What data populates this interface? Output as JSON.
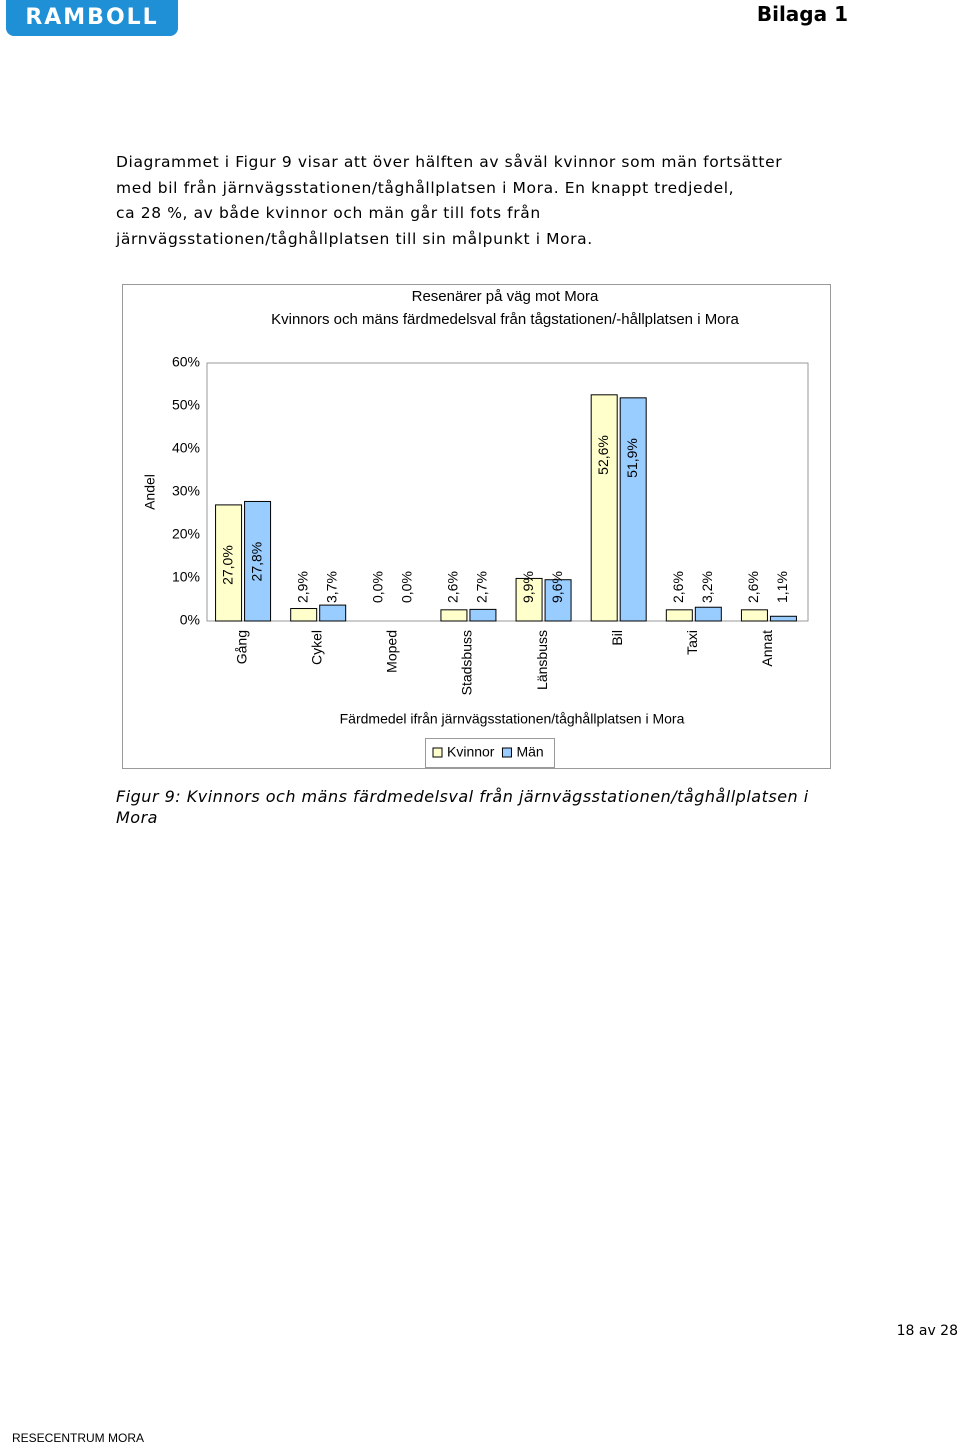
{
  "header": {
    "logo": "RAMBOLL",
    "appendix": "Bilaga 1"
  },
  "paragraph": {
    "lines": [
      "Diagrammet i Figur 9 visar att över hälften av såväl kvinnor som män fortsätter",
      "med bil från järnvägsstationen/tåghållplatsen i Mora. En knappt tredjedel,",
      "ca 28 %, av både kvinnor och män går till fots från",
      "järnvägsstationen/tåghållplatsen till sin målpunkt i Mora."
    ]
  },
  "chart_data": {
    "type": "bar",
    "title": "Resenärer på väg mot Mora",
    "subtitle": "Kvinnors och mäns färdmedelsval från tågstationen/-hållplatsen i Mora",
    "y_label": "Andel",
    "x_label": "Färdmedel ifrån järnvägsstationen/tåghållplatsen i Mora",
    "categories": [
      "Gång",
      "Cykel",
      "Moped",
      "Stadsbuss",
      "Länsbuss",
      "Bil",
      "Taxi",
      "Annat"
    ],
    "series": [
      {
        "name": "Kvinnor",
        "color": "#ffffcc",
        "values": [
          27.0,
          2.9,
          0.0,
          2.6,
          9.9,
          52.6,
          2.6,
          2.6
        ],
        "value_labels": [
          "27,0%",
          "2,9%",
          "0,0%",
          "2,6%",
          "9,9%",
          "52,6%",
          "2,6%",
          "2,6%"
        ]
      },
      {
        "name": "Män",
        "color": "#99ccff",
        "values": [
          27.8,
          3.7,
          0.0,
          2.7,
          9.6,
          51.9,
          3.2,
          1.1
        ],
        "value_labels": [
          "27,8%",
          "3,7%",
          "0,0%",
          "2,7%",
          "9,6%",
          "51,9%",
          "3,2%",
          "1,1%"
        ]
      }
    ],
    "ylim": [
      0,
      60
    ],
    "yticks": [
      {
        "value": 0,
        "label": "0%"
      },
      {
        "value": 10,
        "label": "10%"
      },
      {
        "value": 20,
        "label": "20%"
      },
      {
        "value": 30,
        "label": "30%"
      },
      {
        "value": 40,
        "label": "40%"
      },
      {
        "value": 50,
        "label": "50%"
      },
      {
        "value": 60,
        "label": "60%"
      }
    ],
    "grid": false,
    "legend": "bottom"
  },
  "caption": {
    "lines": [
      "Figur 9: Kvinnors och mäns färdmedelsval från järnvägsstationen/tåghållplatsen i",
      "Mora"
    ]
  },
  "footer": {
    "page": "18 av 28",
    "project": "RESECENTRUM MORA"
  }
}
